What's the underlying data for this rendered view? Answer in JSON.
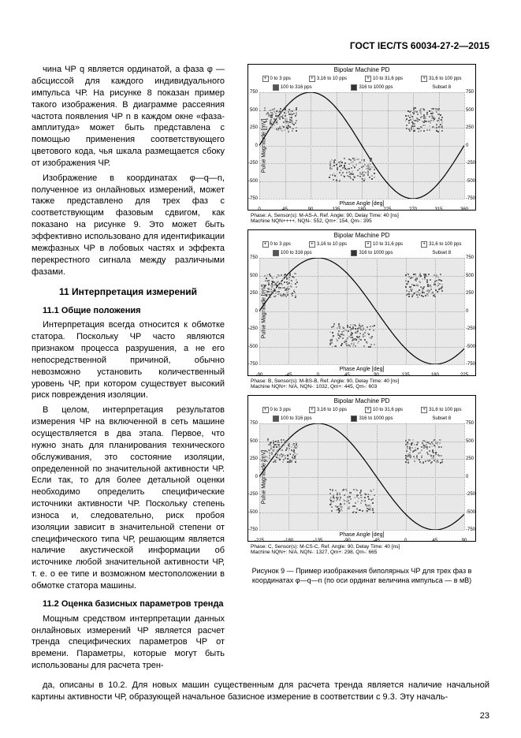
{
  "header": {
    "title": "ГОСТ  IEC/TS  60034-27-2—2015"
  },
  "text": {
    "p1": "чина ЧР q является ординатой, а фаза φ — абсциссой для каждого индивидуального импульса ЧР. На рисунке 8 показан пример такого изображения. В диаграмме рассеяния частота появления ЧР n в каждом окне «фаза-амплитуда» может быть представлена с помощью применения соответствующего цветового кода, чья шкала размещается сбоку от изображения ЧР.",
    "p2": "Изображение в координатах φ—q—n, полученное из онлайновых измерений, может также представлено для трех фаз с соответствующим фазовым сдвигом, как показано на рисунке 9. Это может быть эффективно использовано для идентификации межфазных ЧР в лобовых частях и эффекта перекрестного сигнала между различными фазами.",
    "h11": "11   Интерпретация измерений",
    "h11_1": "11.1   Общие положения",
    "p3": "Интерпретация всегда относится к обмотке статора. Поскольку ЧР часто являются признаком процесса разрушения, а не его непосредственной причиной, обычно невозможно установить количественный уровень ЧР, при котором существует высокий риск повреждения изоляции.",
    "p4": "В целом, интерпретация результатов измерения ЧР на включенной в сеть машине осуществляется в два этапа. Первое, что нужно знать для планирования технического обслуживания, это состояние изоляции, определенной по значительной активности ЧР. Если так, то для более детальной оценки необходимо определить специфические источники активности ЧР. Поскольку степень износа и, следовательно, риск пробоя изоляции зависит в значительной степени от специфического типа ЧР, решающим является наличие акустической информации об источнике любой значительной активности ЧР, т. е. о ее типе и возможном местоположении в обмотке статора машины.",
    "h11_2": "11.2   Оценка базисных параметров тренда",
    "p5": "Мощным средством интерпретации данных онлайновых измерений ЧР является расчет тренда специфических параметров ЧР от времени. Параметры, которые могут быть использованы для расчета тренда, описаны в 10.2. Для новых машин существенным для расчета тренда является наличие начальной картины активности ЧР, образующей начальное базисное измерение в соответствии с 9.3. Эту началь-"
  },
  "chart": {
    "title": "Bipolar Machine PD",
    "legend": [
      {
        "swatch": "+",
        "label": "0 to 3 pps"
      },
      {
        "swatch": "+",
        "label": "3,16 to 10 pps"
      },
      {
        "swatch": "+",
        "label": "10 to 31,6 pps"
      },
      {
        "swatch": "+",
        "label": "31,6 to 100 pps"
      }
    ],
    "legend2": [
      {
        "swatch": "■",
        "label": "100 to 316 pps"
      },
      {
        "swatch": "■",
        "label": "316 to 1000 pps"
      },
      {
        "swatch": "",
        "label": "Subset 8"
      }
    ],
    "ylabel": "Pulse Magnitude [mV]",
    "xlabel": "Phase Angle [deg]",
    "panels": {
      "a": {
        "yticks": [
          -750,
          -500,
          -250,
          0,
          250,
          500,
          750
        ],
        "xticks": [
          0,
          45,
          90,
          135,
          180,
          225,
          270,
          315,
          360
        ],
        "footer1": "Phase: A,   Sensor(s): M-AS-A,   Ref. Angle: 90,   Delay Time: 40 [ns]",
        "footer2": "Machine   NQN++++,  NQN-: 552, Qm+: 154, Qm-: 395",
        "sine_phase": 0
      },
      "b": {
        "yticks": [
          -750,
          -500,
          -250,
          0,
          250,
          500,
          750
        ],
        "xticks": [
          -90,
          -45,
          0,
          45,
          90,
          135,
          180,
          225
        ],
        "footer1": "Phase: B,   Sensor(s): M-BS-B,   Ref. Angle: 90,   Delay Time: 40 [ns]",
        "footer2": "Machine   NQN+: N/A,  NQN-: 1032, Qm+: 445, Qm-: 603",
        "sine_phase": 120
      },
      "c": {
        "yticks": [
          -750,
          -500,
          -250,
          0,
          250,
          500,
          750
        ],
        "xticks": [
          -225,
          -180,
          -135,
          -90,
          -45,
          0,
          45,
          90
        ],
        "footer1": "Phase: C,   Sensor(s): M-CS-C,   Ref. Angle: 90,   Delay Time: 40 [ns]",
        "footer2": "Machine   NQN+: N/A,  NQN-: 1327, Qm+: 298, Qm-: 665",
        "sine_phase": 240
      }
    }
  },
  "figcaption": "Рисунок 9 — Пример изображения биполярных ЧР для трех фаз в координатах φ—q—n (по оси ординат величина импульса — в мВ)",
  "page": "23",
  "colors": {
    "grid": "#aaaaaa",
    "bg": "#e8e8e8",
    "sine": "#000000",
    "dots": "#888888"
  }
}
